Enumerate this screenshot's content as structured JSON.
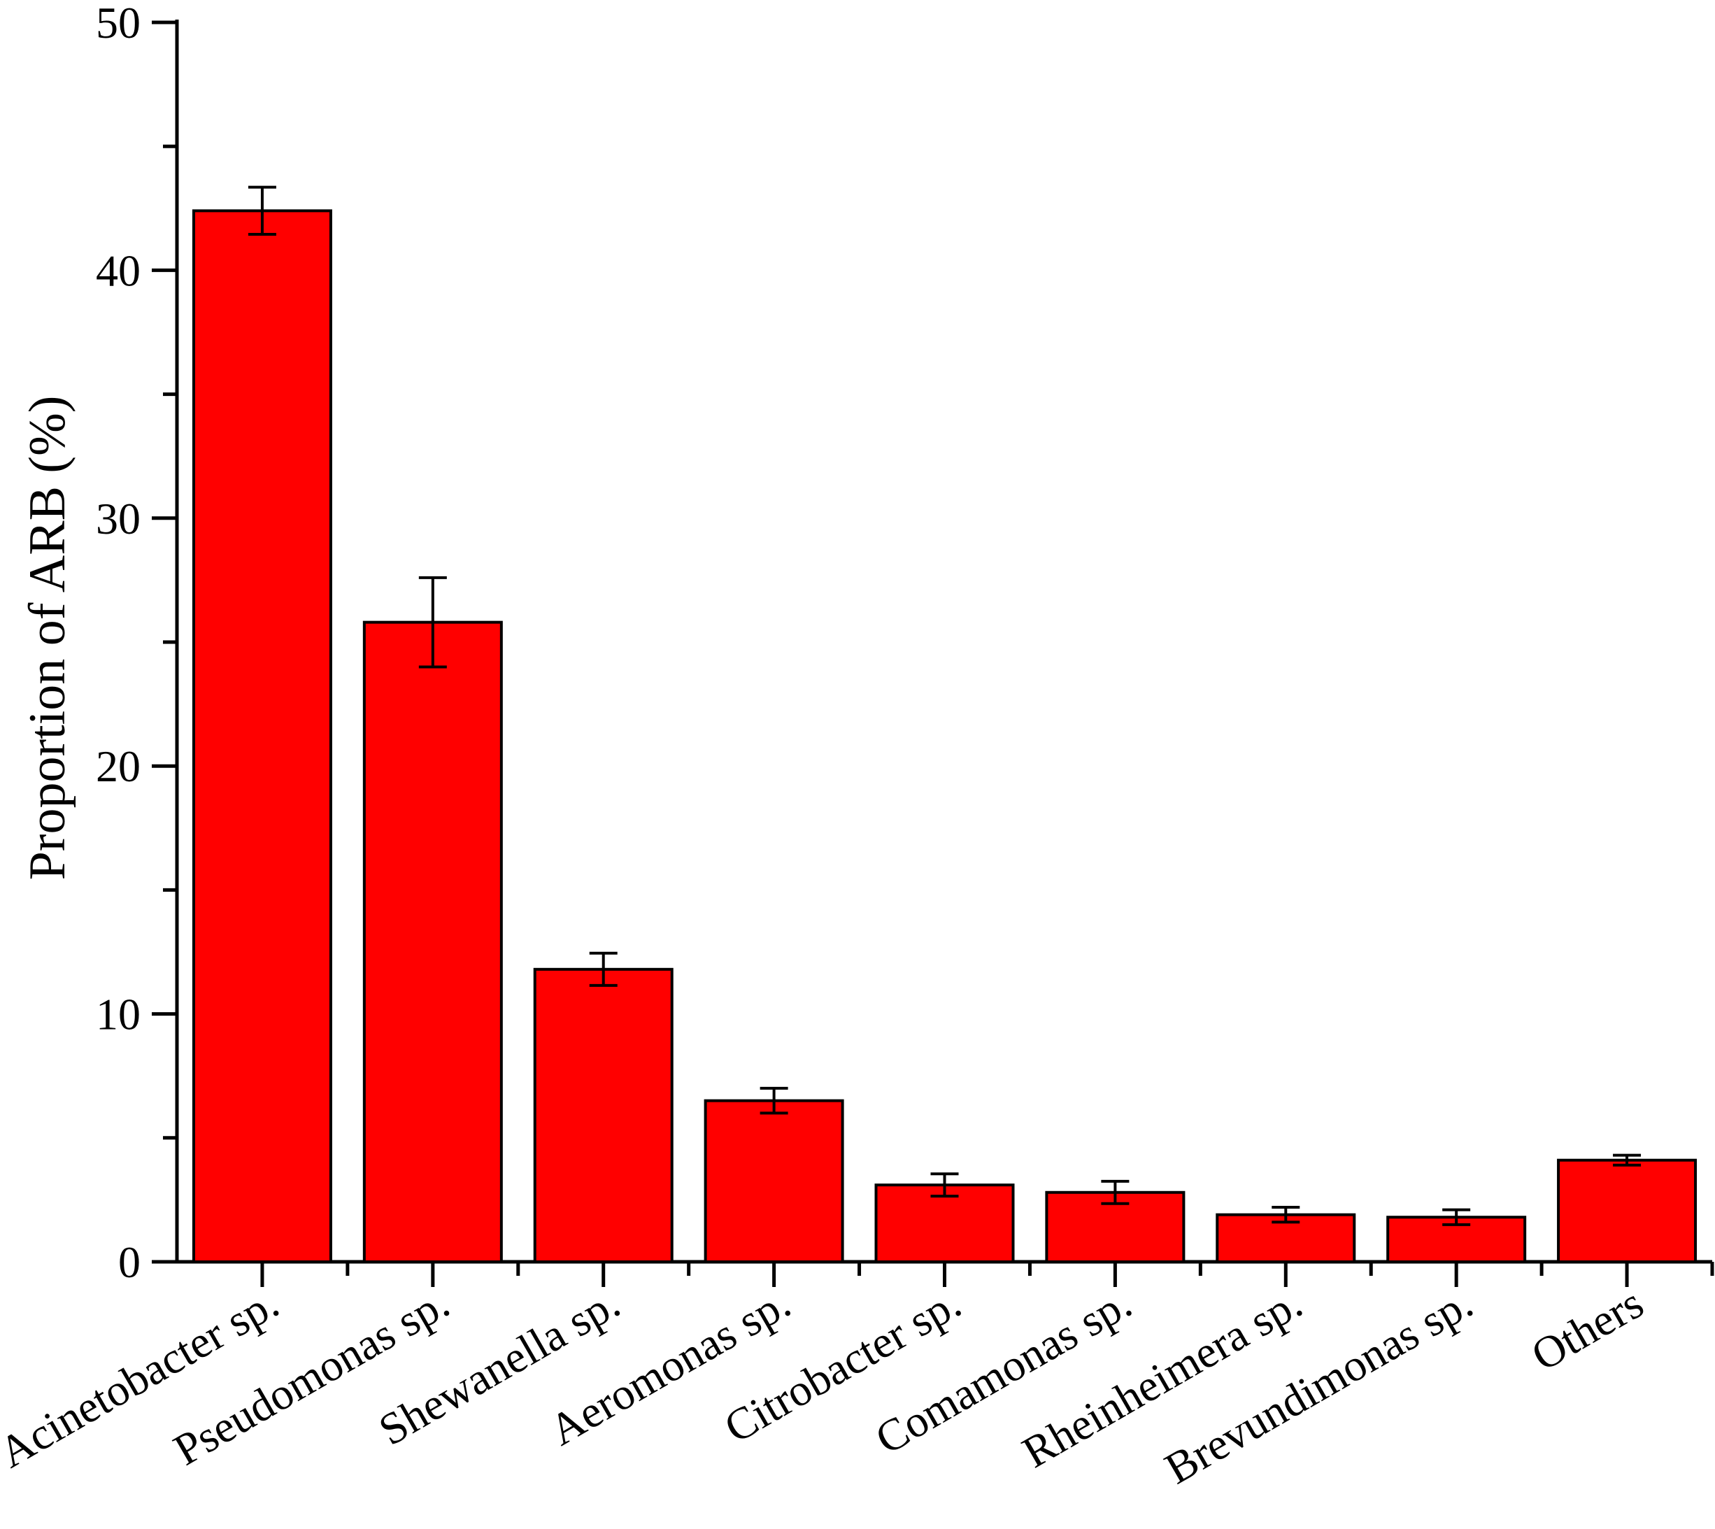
{
  "chart_data": {
    "type": "bar",
    "title": "",
    "xlabel": "",
    "ylabel": "Proportion of ARB (%)",
    "ylim": [
      0,
      50
    ],
    "yticks": [
      0,
      10,
      20,
      30,
      40,
      50
    ],
    "grid": false,
    "legend": "none",
    "bar_color": "#ff0000",
    "categories": [
      "Acinetobacter sp.",
      "Pseudomonas sp.",
      "Shewanella sp.",
      "Aeromonas sp.",
      "Citrobacter sp.",
      "Comamonas sp.",
      "Rheinheimera sp.",
      "Brevundimonas sp.",
      "Others"
    ],
    "values": [
      42.4,
      25.8,
      11.8,
      6.5,
      3.1,
      2.8,
      1.9,
      1.8,
      4.1
    ],
    "errors": [
      0.95,
      1.8,
      0.65,
      0.5,
      0.45,
      0.45,
      0.3,
      0.3,
      0.2
    ]
  }
}
